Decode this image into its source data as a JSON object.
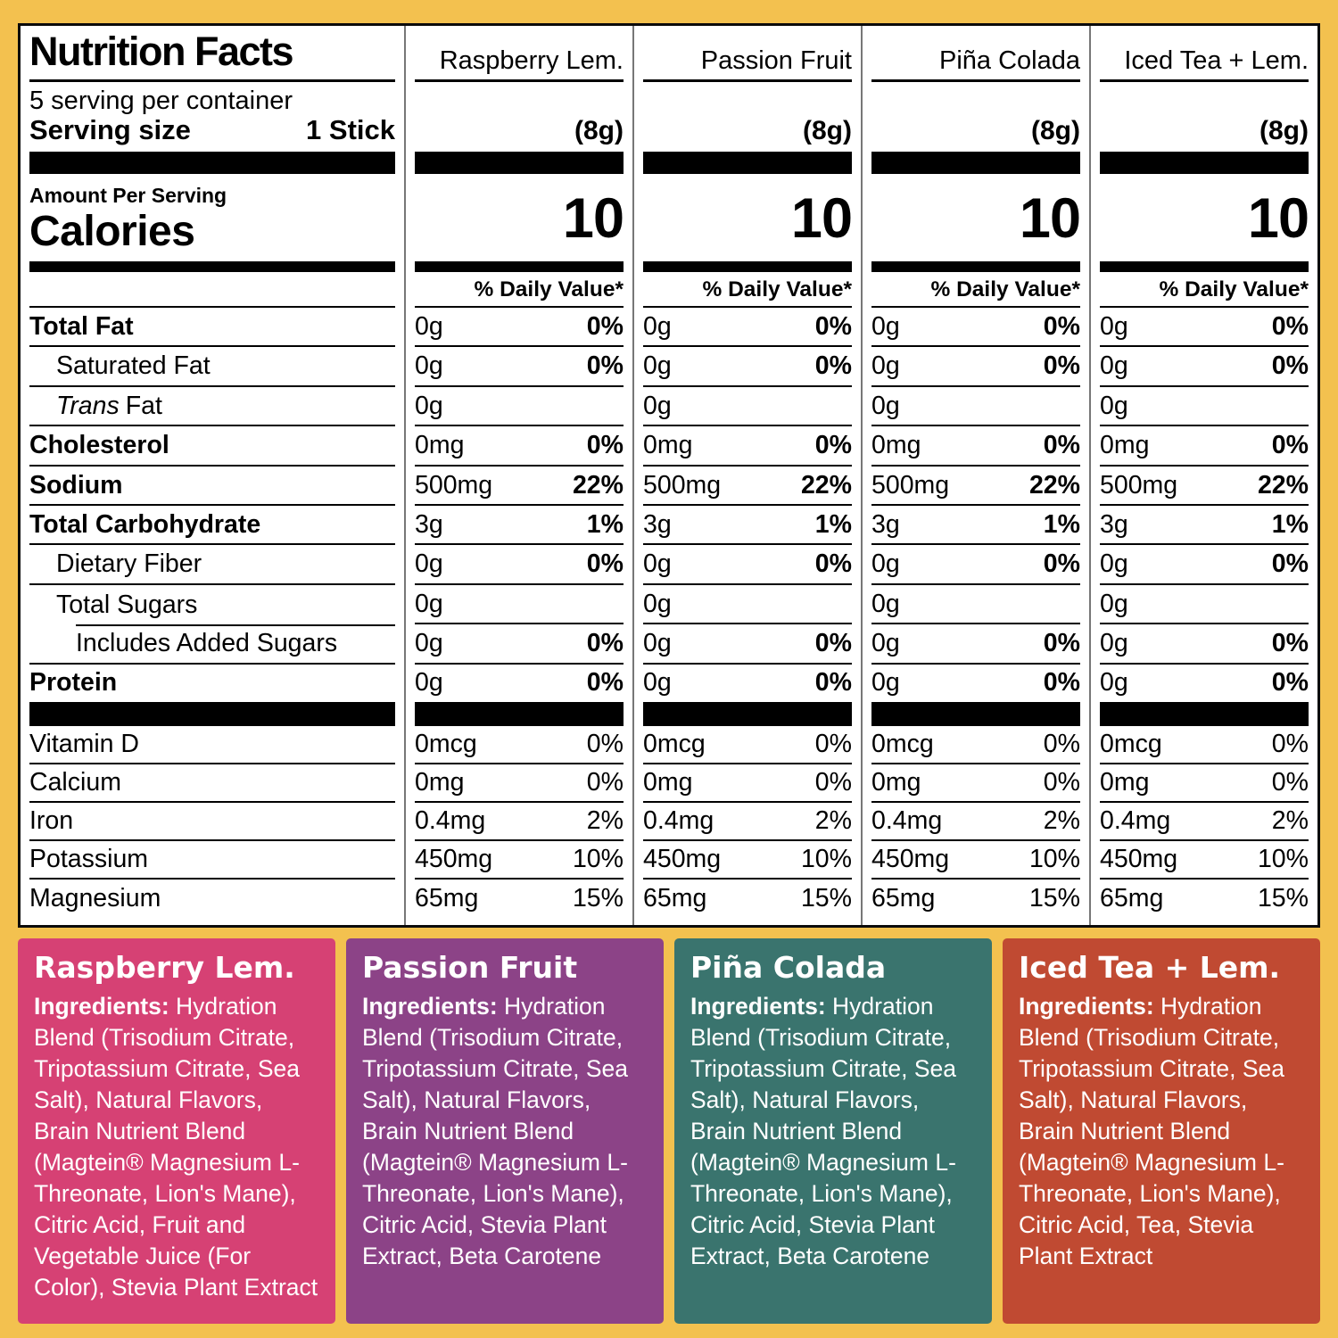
{
  "header": {
    "title": "Nutrition Facts",
    "servings_per_container": "5 serving per container",
    "serving_size_label": "Serving size",
    "serving_size_value": "1 Stick",
    "amount_per_serving": "Amount Per Serving",
    "calories_label": "Calories",
    "serving_grams": "(8g)",
    "calories_value": "10",
    "daily_value_header": "% Daily Value*"
  },
  "flavors": [
    {
      "name": "Raspberry Lem."
    },
    {
      "name": "Passion Fruit"
    },
    {
      "name": "Piña Colada"
    },
    {
      "name": "Iced Tea + Lem."
    }
  ],
  "rows": [
    {
      "label": "Total Fat",
      "bold": true,
      "indent": 0,
      "amount": "0g",
      "pct": "0%",
      "pct_bold": true
    },
    {
      "label": "Saturated Fat",
      "bold": false,
      "indent": 1,
      "amount": "0g",
      "pct": "0%",
      "pct_bold": true
    },
    {
      "label": "Fat",
      "italic_prefix": "Trans",
      "bold": false,
      "indent": 1,
      "amount": "0g",
      "pct": "",
      "pct_bold": false
    },
    {
      "label": "Cholesterol",
      "bold": true,
      "indent": 0,
      "amount": "0mg",
      "pct": "0%",
      "pct_bold": true
    },
    {
      "label": "Sodium",
      "bold": true,
      "indent": 0,
      "amount": "500mg",
      "pct": "22%",
      "pct_bold": true
    },
    {
      "label": "Total Carbohydrate",
      "bold": true,
      "indent": 0,
      "amount": "3g",
      "pct": "1%",
      "pct_bold": true
    },
    {
      "label": "Dietary Fiber",
      "bold": false,
      "indent": 1,
      "amount": "0g",
      "pct": "0%",
      "pct_bold": true
    },
    {
      "label": "Total Sugars",
      "bold": false,
      "indent": 1,
      "amount": "0g",
      "pct": "",
      "pct_bold": false,
      "border_indent": true
    },
    {
      "label": "Includes Added Sugars",
      "bold": false,
      "indent": 2,
      "amount": "0g",
      "pct": "0%",
      "pct_bold": true
    },
    {
      "label": "Protein",
      "bold": true,
      "indent": 0,
      "amount": "0g",
      "pct": "0%",
      "pct_bold": true
    }
  ],
  "vitamins": [
    {
      "label": "Vitamin D",
      "amount": "0mcg",
      "pct": "0%"
    },
    {
      "label": "Calcium",
      "amount": "0mg",
      "pct": "0%"
    },
    {
      "label": "Iron",
      "amount": "0.4mg",
      "pct": "2%"
    },
    {
      "label": "Potassium",
      "amount": "450mg",
      "pct": "10%"
    },
    {
      "label": "Magnesium",
      "amount": "65mg",
      "pct": "15%"
    }
  ],
  "panels": [
    {
      "name": "Raspberry Lem.",
      "color": "#D64174",
      "ingredients_label": "Ingredients:",
      "ingredients": "Hydration Blend (Trisodium Citrate, Tripotassium Citrate, Sea Salt), Natural Flavors, Brain Nutrient Blend (Magtein® Magnesium L-Threonate, Lion's Mane), Citric Acid, Fruit and Vegetable Juice (For Color), Stevia Plant Extract"
    },
    {
      "name": "Passion Fruit",
      "color": "#8C4387",
      "ingredients_label": "Ingredients:",
      "ingredients": "Hydration Blend (Trisodium Citrate, Tripotassium Citrate, Sea Salt), Natural Flavors, Brain Nutrient Blend (Magtein® Magnesium L-Threonate, Lion's Mane), Citric Acid, Stevia Plant Extract, Beta Carotene"
    },
    {
      "name": "Piña Colada",
      "color": "#3A746E",
      "ingredients_label": "Ingredients:",
      "ingredients": "Hydration Blend (Trisodium Citrate, Tripotassium Citrate, Sea Salt), Natural Flavors, Brain Nutrient Blend (Magtein® Magnesium L-Threonate, Lion's Mane), Citric Acid, Stevia Plant Extract, Beta Carotene"
    },
    {
      "name": "Iced Tea + Lem.",
      "color": "#C04A32",
      "ingredients_label": "Ingredients:",
      "ingredients": "Hydration Blend (Trisodium Citrate, Tripotassium Citrate, Sea Salt), Natural Flavors, Brain Nutrient Blend (Magtein® Magnesium L-Threonate, Lion's Mane), Citric Acid, Tea, Stevia Plant Extract"
    }
  ]
}
